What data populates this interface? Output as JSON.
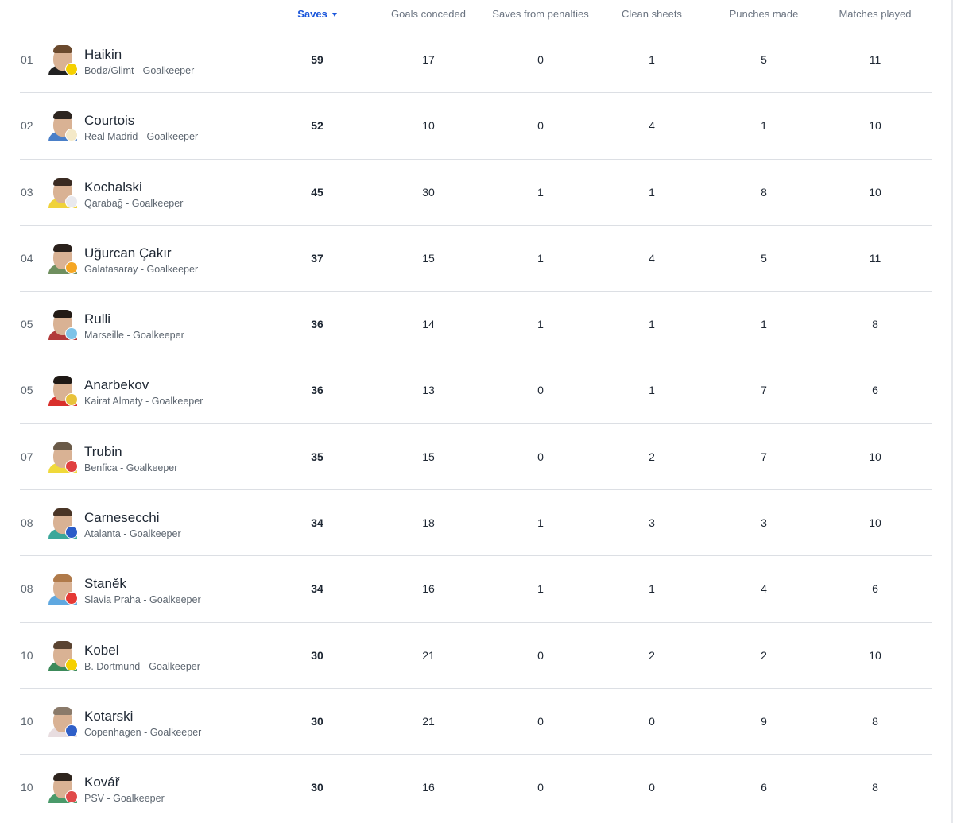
{
  "header": {
    "saves": "Saves",
    "goals_conceded": "Goals conceded",
    "saves_from_penalties": "Saves from penalties",
    "clean_sheets": "Clean sheets",
    "punches_made": "Punches made",
    "matches_played": "Matches played",
    "sort_icon": "caret-down-icon"
  },
  "colors": {
    "accent": "#1a56db",
    "divider": "#dcdfe4"
  },
  "players": [
    {
      "rank": "01",
      "name": "Haikin",
      "club": "Bodø/Glimt - Goalkeeper",
      "saves": "59",
      "goals_conceded": "17",
      "saves_from_penalties": "0",
      "clean_sheets": "1",
      "punches_made": "5",
      "matches_played": "11",
      "shirt_color": "#222222",
      "badge_color": "#f5d000",
      "hair_color": "#6b4a2e"
    },
    {
      "rank": "02",
      "name": "Courtois",
      "club": "Real Madrid - Goalkeeper",
      "saves": "52",
      "goals_conceded": "10",
      "saves_from_penalties": "0",
      "clean_sheets": "4",
      "punches_made": "1",
      "matches_played": "10",
      "shirt_color": "#4a7fc8",
      "badge_color": "#f4e9c8",
      "hair_color": "#2d2520"
    },
    {
      "rank": "03",
      "name": "Kochalski",
      "club": "Qarabağ - Goalkeeper",
      "saves": "45",
      "goals_conceded": "30",
      "saves_from_penalties": "1",
      "clean_sheets": "1",
      "punches_made": "8",
      "matches_played": "10",
      "shirt_color": "#f0d23a",
      "badge_color": "#e9e9ee",
      "hair_color": "#3a2b22"
    },
    {
      "rank": "04",
      "name": "Uğurcan Çakır",
      "club": "Galatasaray - Goalkeeper",
      "saves": "37",
      "goals_conceded": "15",
      "saves_from_penalties": "1",
      "clean_sheets": "4",
      "punches_made": "5",
      "matches_played": "11",
      "shirt_color": "#6f8f5f",
      "badge_color": "#f5a623",
      "hair_color": "#2a211c"
    },
    {
      "rank": "05",
      "name": "Rulli",
      "club": "Marseille - Goalkeeper",
      "saves": "36",
      "goals_conceded": "14",
      "saves_from_penalties": "1",
      "clean_sheets": "1",
      "punches_made": "1",
      "matches_played": "8",
      "shirt_color": "#b23a3a",
      "badge_color": "#7ec3e8",
      "hair_color": "#231b16"
    },
    {
      "rank": "05",
      "name": "Anarbekov",
      "club": "Kairat Almaty - Goalkeeper",
      "saves": "36",
      "goals_conceded": "13",
      "saves_from_penalties": "0",
      "clean_sheets": "1",
      "punches_made": "7",
      "matches_played": "6",
      "shirt_color": "#d9302c",
      "badge_color": "#e8c23a",
      "hair_color": "#1f1915"
    },
    {
      "rank": "07",
      "name": "Trubin",
      "club": "Benfica - Goalkeeper",
      "saves": "35",
      "goals_conceded": "15",
      "saves_from_penalties": "0",
      "clean_sheets": "2",
      "punches_made": "7",
      "matches_played": "10",
      "shirt_color": "#f0d93a",
      "badge_color": "#e04040",
      "hair_color": "#6a5a48"
    },
    {
      "rank": "08",
      "name": "Carnesecchi",
      "club": "Atalanta - Goalkeeper",
      "saves": "34",
      "goals_conceded": "18",
      "saves_from_penalties": "1",
      "clean_sheets": "3",
      "punches_made": "3",
      "matches_played": "10",
      "shirt_color": "#3aa79a",
      "badge_color": "#2a5cc8",
      "hair_color": "#4a3526"
    },
    {
      "rank": "08",
      "name": "Staněk",
      "club": "Slavia Praha - Goalkeeper",
      "saves": "34",
      "goals_conceded": "16",
      "saves_from_penalties": "1",
      "clean_sheets": "1",
      "punches_made": "4",
      "matches_played": "6",
      "shirt_color": "#5fa8e0",
      "badge_color": "#e53935",
      "hair_color": "#b07a4a"
    },
    {
      "rank": "10",
      "name": "Kobel",
      "club": "B. Dortmund - Goalkeeper",
      "saves": "30",
      "goals_conceded": "21",
      "saves_from_penalties": "0",
      "clean_sheets": "2",
      "punches_made": "2",
      "matches_played": "10",
      "shirt_color": "#3c8a5a",
      "badge_color": "#f5d000",
      "hair_color": "#5a4331"
    },
    {
      "rank": "10",
      "name": "Kotarski",
      "club": "Copenhagen - Goalkeeper",
      "saves": "30",
      "goals_conceded": "21",
      "saves_from_penalties": "0",
      "clean_sheets": "0",
      "punches_made": "9",
      "matches_played": "8",
      "shirt_color": "#e8dde0",
      "badge_color": "#2f5fc8",
      "hair_color": "#8a7a6a"
    },
    {
      "rank": "10",
      "name": "Kovář",
      "club": "PSV - Goalkeeper",
      "saves": "30",
      "goals_conceded": "16",
      "saves_from_penalties": "0",
      "clean_sheets": "0",
      "punches_made": "6",
      "matches_played": "8",
      "shirt_color": "#4a9a6a",
      "badge_color": "#e04a4a",
      "hair_color": "#2e241d"
    }
  ]
}
